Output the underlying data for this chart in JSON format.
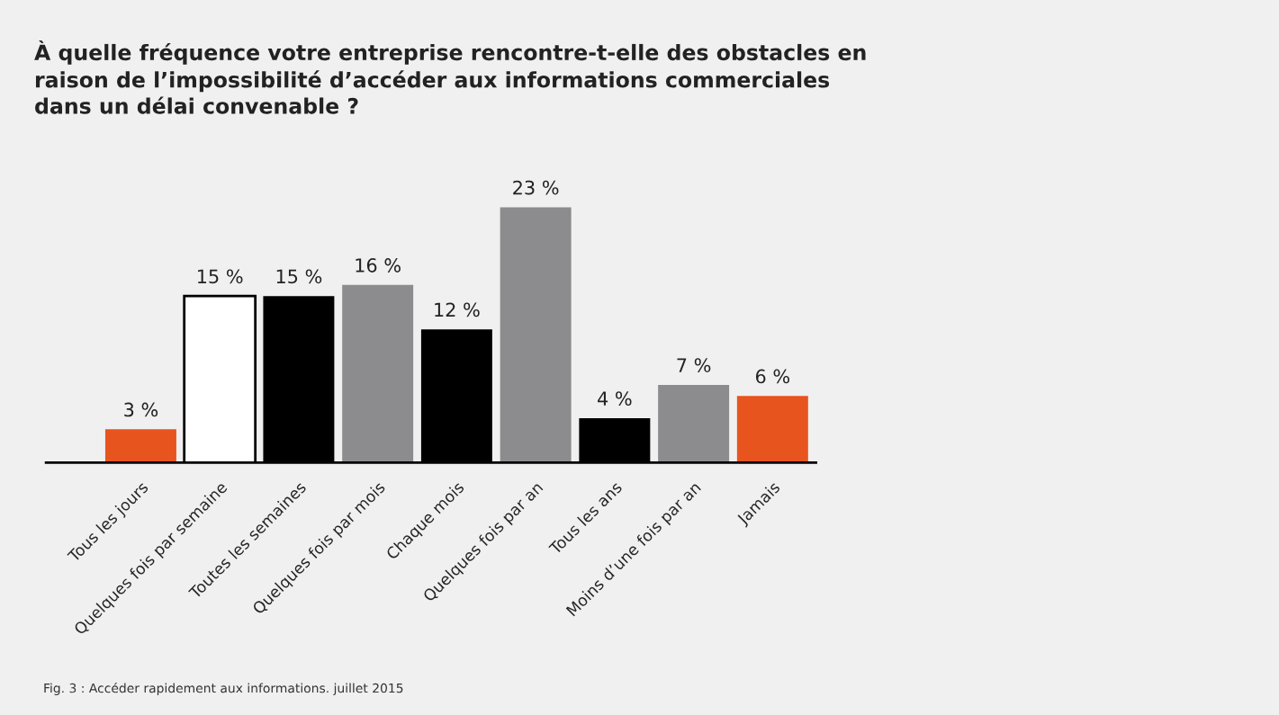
{
  "chart_data": {
    "type": "bar",
    "title": "À quelle fréquence votre entreprise rencontre-t-elle des obstacles en\nraison de l’impossibilité d’accéder aux informations commerciales\ndans un délai convenable ?",
    "categories": [
      "Tous les jours",
      "Quelques fois par semaine",
      "Toutes les semaines",
      "Quelques fois par mois",
      "Chaque mois",
      "Quelques fois par an",
      "Tous les ans",
      "Moins d’une fois par an",
      "Jamais"
    ],
    "values": [
      3,
      15,
      15,
      16,
      12,
      23,
      4,
      7,
      6
    ],
    "colors": [
      "#e8541e",
      "#ffffff",
      "#000000",
      "#8c8c8f",
      "#000000",
      "#8c8c8f",
      "#000000",
      "#8c8c8f",
      "#e8541e"
    ],
    "value_labels": [
      "3 %",
      "15 %",
      "15 %",
      "16 %",
      "12 %",
      "23 %",
      "4 %",
      "7 %",
      "6 %"
    ],
    "grid": false,
    "legend": false,
    "annotations": [
      "Fig. 3 : Accéder rapidement aux informations. juillet 2015"
    ]
  }
}
